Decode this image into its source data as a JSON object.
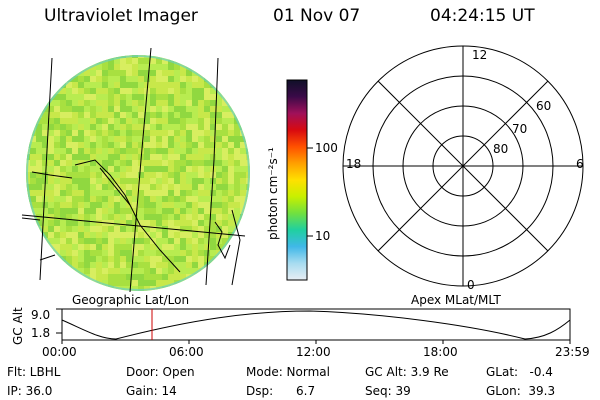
{
  "header": {
    "title": "Ultraviolet Imager",
    "date": "01 Nov 07",
    "time": "04:24:15 UT"
  },
  "colorbar": {
    "label": "photon cm⁻²s⁻¹",
    "ticks": [
      "100",
      "10"
    ],
    "colors": [
      "#101028",
      "#3a0a48",
      "#a0105a",
      "#d80a10",
      "#ff5000",
      "#ffa000",
      "#ffe000",
      "#c8f000",
      "#70e040",
      "#20d0a0",
      "#40b8e8",
      "#a8dcf0",
      "#e8eef4"
    ]
  },
  "left_panel": {
    "caption": "Geographic Lat/Lon",
    "disk_colors": [
      "#c8e84a",
      "#a8e040",
      "#d8ee60",
      "#90d840",
      "#b8ec50"
    ]
  },
  "polar_plot": {
    "caption": "Apex MLat/MLT",
    "mlt_labels": {
      "top": "12",
      "left": "18",
      "right": "6",
      "bottom": "0"
    },
    "lat_labels": [
      "60",
      "70",
      "80"
    ]
  },
  "altitude_plot": {
    "ylabel": "GC Alt",
    "yticks": [
      "9.0",
      "1.8"
    ],
    "xticks": [
      "00:00",
      "06:00",
      "12:00",
      "18:00",
      "23:59"
    ],
    "marker_color": "#cc0000"
  },
  "info": {
    "flt": "Flt: LBHL",
    "ip": "IP: 36.0",
    "door": "Door: Open",
    "gain": "Gain: 14",
    "mode": "Mode: Normal",
    "dsp": "Dsp:      6.7",
    "gcalt": "GC Alt: 3.9 Re",
    "seq": "Seq: 39",
    "glat": "GLat:   -0.4",
    "glon": "GLon:  39.3"
  }
}
